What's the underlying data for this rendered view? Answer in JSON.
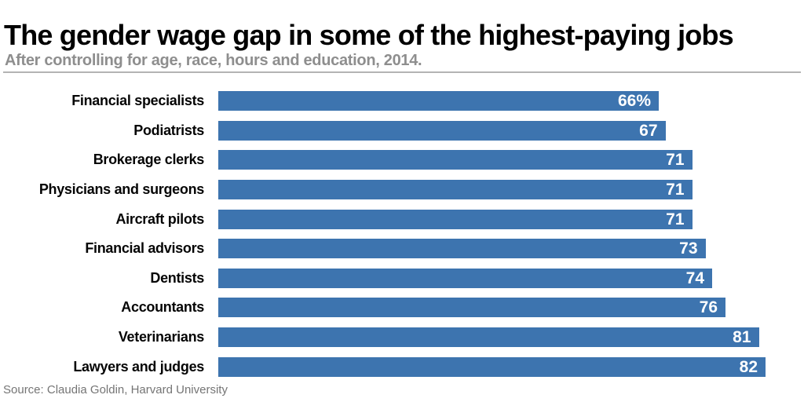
{
  "header": {
    "title": "The gender wage gap in some of the highest-paying jobs",
    "subtitle": "After controlling for age, race, hours and education, 2014."
  },
  "source_note": "Source: Claudia Goldin, Harvard University",
  "chart_data": {
    "type": "bar",
    "orientation": "horizontal",
    "title": "The gender wage gap in some of the highest-paying jobs",
    "subtitle": "After controlling for age, race, hours and education, 2014.",
    "categories": [
      "Financial specialists",
      "Podiatrists",
      "Brokerage clerks",
      "Physicians and surgeons",
      "Aircraft pilots",
      "Financial advisors",
      "Dentists",
      "Accountants",
      "Veterinarians",
      "Lawyers and judges"
    ],
    "values": [
      66,
      67,
      71,
      71,
      71,
      73,
      74,
      76,
      81,
      82
    ],
    "value_labels": [
      "66%",
      "67",
      "71",
      "71",
      "71",
      "73",
      "74",
      "76",
      "81",
      "82"
    ],
    "xlabel": "",
    "ylabel": "",
    "xlim": [
      0,
      86
    ],
    "grid": false,
    "legend": false,
    "bar_color": "#3D74AF",
    "value_label_color": "#ffffff"
  }
}
